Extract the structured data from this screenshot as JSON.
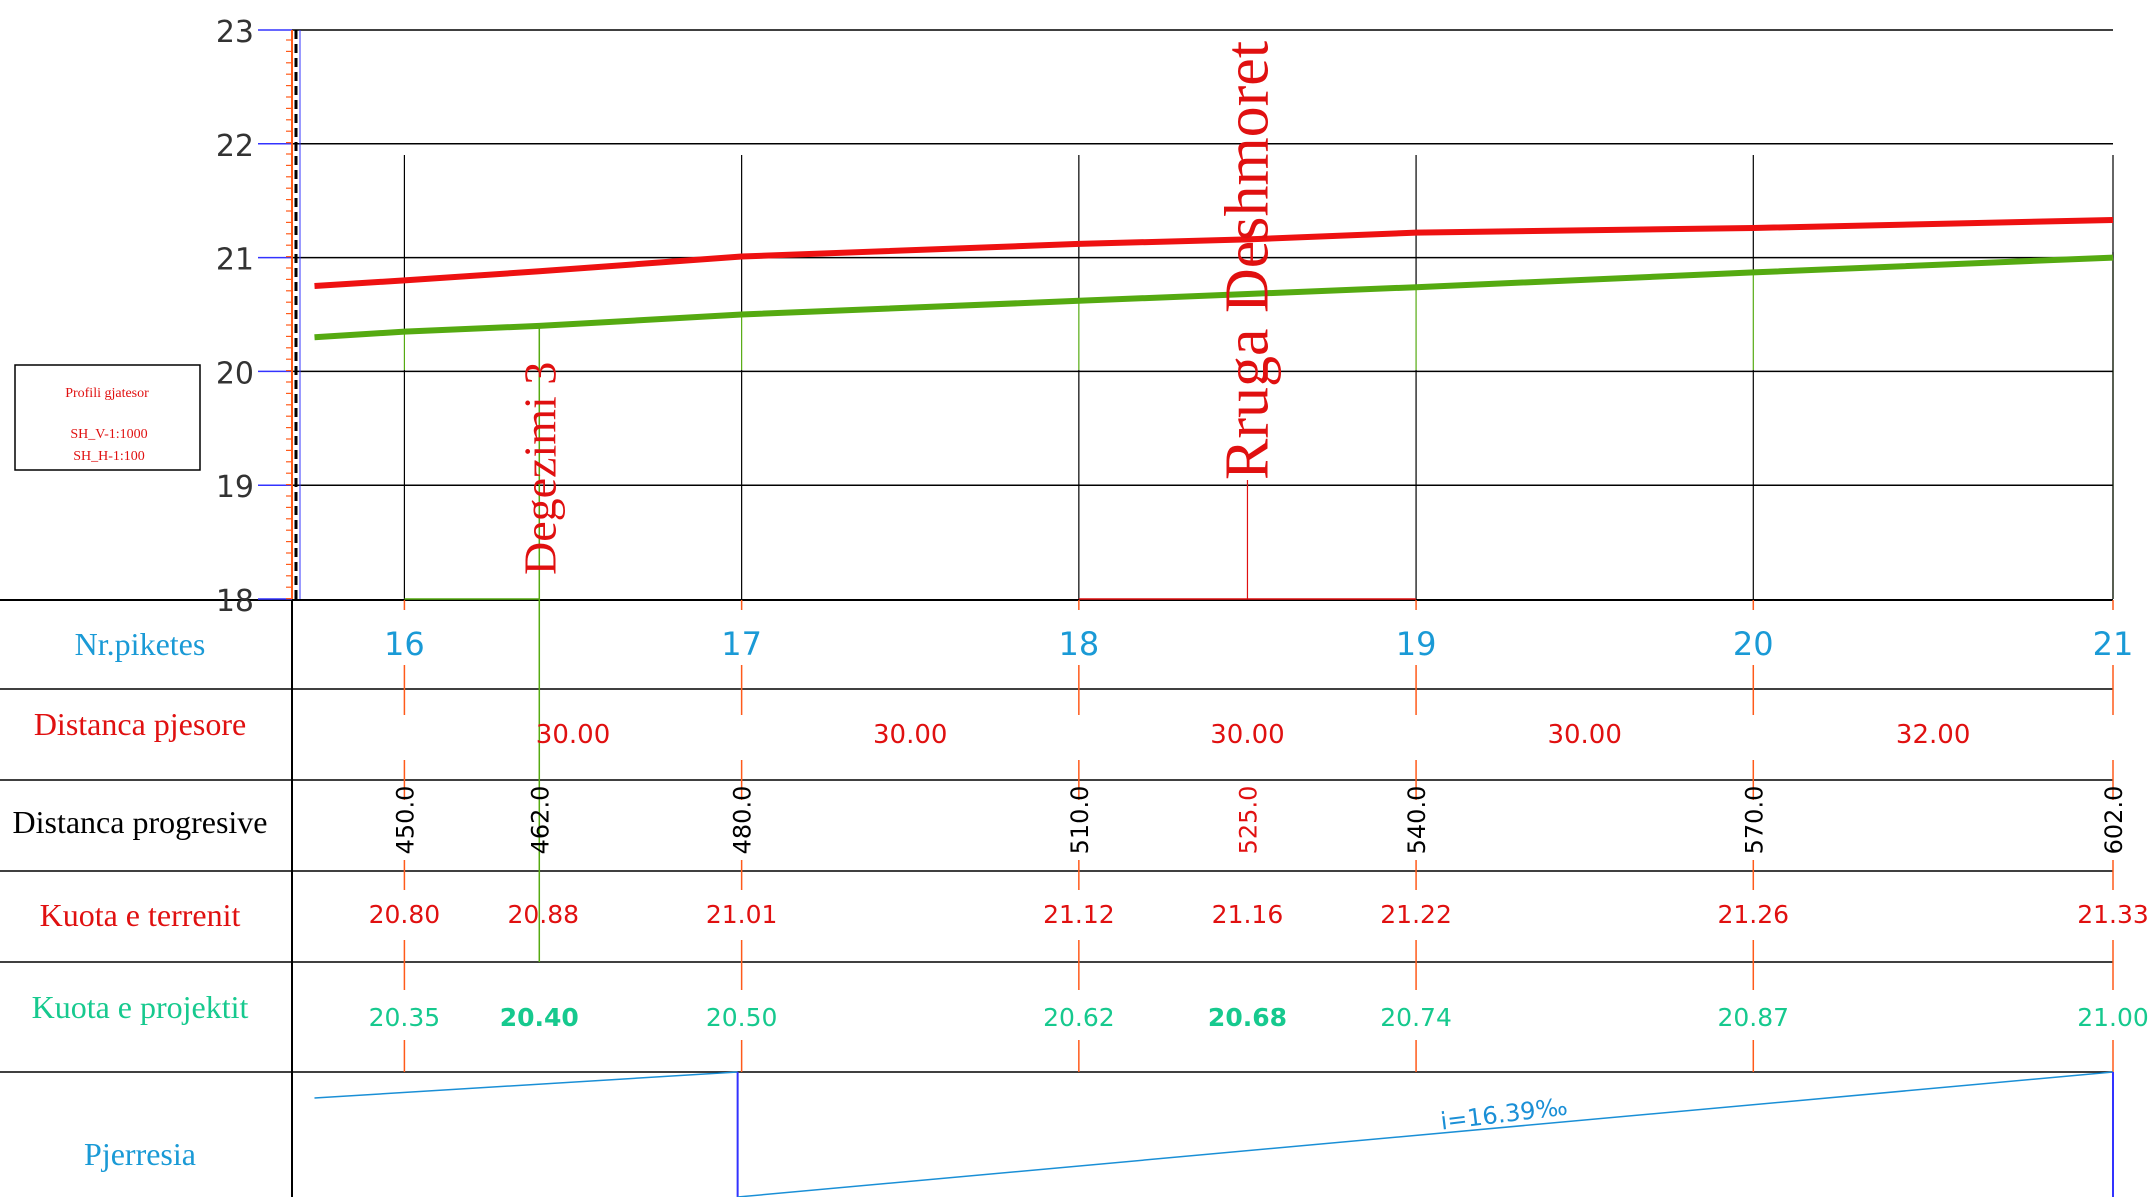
{
  "scale_box": {
    "title": "Profili gjatesor",
    "line1": "SH_V-1:1000",
    "line2": "SH_H-1:100"
  },
  "y_axis": {
    "ticks": [
      "23",
      "22",
      "21",
      "20",
      "19",
      "18"
    ],
    "min": 18,
    "max": 23
  },
  "x_range": [
    440,
    602
  ],
  "stations": [
    {
      "label": "16",
      "chainage": 450
    },
    {
      "label": "17",
      "chainage": 480
    },
    {
      "label": "18",
      "chainage": 510
    },
    {
      "label": "19",
      "chainage": 540
    },
    {
      "label": "20",
      "chainage": 570
    },
    {
      "label": "21",
      "chainage": 602
    }
  ],
  "features": [
    {
      "label": "Degezimi 3",
      "chainage": 462
    },
    {
      "label": "Rruga Deshmoret",
      "chainage": 525
    }
  ],
  "row_labels": {
    "stations": "Nr.piketes",
    "distances": "Distanca pjesore",
    "progressive": "Distanca progresive",
    "terrain": "Kuota e terrenit",
    "design": "Kuota e projektit",
    "slope": "Pjerresia"
  },
  "partial_distances": [
    {
      "from": 450,
      "to": 480,
      "label": "30.00"
    },
    {
      "from": 480,
      "to": 510,
      "label": "30.00"
    },
    {
      "from": 510,
      "to": 540,
      "label": "30.00"
    },
    {
      "from": 540,
      "to": 570,
      "label": "30.00"
    },
    {
      "from": 570,
      "to": 602,
      "label": "32.00"
    }
  ],
  "chart_data": {
    "type": "line",
    "xlabel": "",
    "ylabel": "",
    "ylim": [
      18,
      23
    ],
    "xlim": [
      440,
      602
    ],
    "grid": true,
    "series": [
      {
        "color": "#ee1111",
        "points": [
          {
            "x": 442,
            "y": 20.75
          },
          {
            "x": 450,
            "y": 20.8
          },
          {
            "x": 462,
            "y": 20.88
          },
          {
            "x": 480,
            "y": 21.01
          },
          {
            "x": 510,
            "y": 21.12
          },
          {
            "x": 525,
            "y": 21.16
          },
          {
            "x": 540,
            "y": 21.22
          },
          {
            "x": 570,
            "y": 21.26
          },
          {
            "x": 602,
            "y": 21.33
          }
        ]
      },
      {
        "color": "#55aa11",
        "points": [
          {
            "x": 442,
            "y": 20.3
          },
          {
            "x": 450,
            "y": 20.35
          },
          {
            "x": 462,
            "y": 20.4
          },
          {
            "x": 480,
            "y": 20.5
          },
          {
            "x": 510,
            "y": 20.62
          },
          {
            "x": 525,
            "y": 20.68
          },
          {
            "x": 540,
            "y": 20.74
          },
          {
            "x": 570,
            "y": 20.87
          },
          {
            "x": 602,
            "y": 21.0
          }
        ]
      }
    ]
  },
  "progressive": [
    {
      "chainage": 450,
      "label": "450.0",
      "color": "#000000"
    },
    {
      "chainage": 462,
      "label": "462.0",
      "color": "#000000"
    },
    {
      "chainage": 480,
      "label": "480.0",
      "color": "#000000"
    },
    {
      "chainage": 510,
      "label": "510.0",
      "color": "#000000"
    },
    {
      "chainage": 525,
      "label": "525.0",
      "color": "#e01010"
    },
    {
      "chainage": 540,
      "label": "540.0",
      "color": "#000000"
    },
    {
      "chainage": 570,
      "label": "570.0",
      "color": "#000000"
    },
    {
      "chainage": 602,
      "label": "602.0",
      "color": "#000000"
    }
  ],
  "terrain_labels": [
    {
      "chainage": 450,
      "label": "20.80"
    },
    {
      "chainage": 462,
      "label": "20.88"
    },
    {
      "chainage": 480,
      "label": "21.01"
    },
    {
      "chainage": 510,
      "label": "21.12"
    },
    {
      "chainage": 525,
      "label": "21.16"
    },
    {
      "chainage": 540,
      "label": "21.22"
    },
    {
      "chainage": 570,
      "label": "21.26"
    },
    {
      "chainage": 602,
      "label": "21.33"
    }
  ],
  "design_labels": [
    {
      "chainage": 450,
      "label": "20.35",
      "bold": false
    },
    {
      "chainage": 462,
      "label": "20.40",
      "bold": true
    },
    {
      "chainage": 480,
      "label": "20.50",
      "bold": false
    },
    {
      "chainage": 510,
      "label": "20.62",
      "bold": false
    },
    {
      "chainage": 525,
      "label": "20.68",
      "bold": true
    },
    {
      "chainage": 540,
      "label": "20.74",
      "bold": false
    },
    {
      "chainage": 570,
      "label": "20.87",
      "bold": false
    },
    {
      "chainage": 602,
      "label": "21.00",
      "bold": false
    }
  ],
  "slope": {
    "label": "i=16.39‰",
    "break_chainage": 480,
    "value_permille": 16.39
  },
  "colors": {
    "terrain": "#ee1111",
    "design": "#55aa11",
    "station_text": "#1a9ad6",
    "terrain_text": "#e01010",
    "design_text": "#16c98e",
    "slope_line": "#1a8fd6",
    "axis_blue": "#3333ff",
    "tick_orange": "#ff5a1a"
  }
}
